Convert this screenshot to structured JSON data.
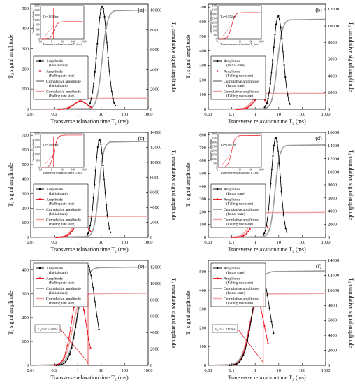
{
  "figure": {
    "common": {
      "xlabel": "Transverse relaxation time T₂ (ms)",
      "ylabel_left": "T₂ signal amplitude",
      "ylabel_right": "T₂ cumulative signal amplitude",
      "x_ticks": [
        "0.01",
        "0.1",
        "1",
        "10",
        "100",
        "1000"
      ],
      "legend": [
        {
          "label": "Amplitude",
          "sub": "(Initial state)",
          "color": "#000000",
          "style": "dots"
        },
        {
          "label": "Amplitude",
          "sub": "(Falling rate state)",
          "color": "#e8101a",
          "style": "dots"
        },
        {
          "label": "Cumulative amplitude",
          "sub": "(Initial state)",
          "color": "#8a8a8a",
          "style": "line"
        },
        {
          "label": "Cumulative amplitude",
          "sub": "(Falling rate state)",
          "color": "#f2a3a3",
          "style": "line"
        }
      ],
      "inset": {
        "xlabel": "Transverse relaxation time T₂ (ms)",
        "ylabel": "Cumulative amplitude",
        "x_ticks": [
          "0.1",
          "1",
          "10",
          "100",
          "1000"
        ]
      },
      "colors": {
        "initial": "#000000",
        "falling": "#e8101a",
        "cum_initial": "#9a9a9a",
        "cum_falling": "#f2a3a3"
      }
    },
    "panels": [
      {
        "label": "(a)",
        "yleft_ticks": [
          "0",
          "100",
          "200",
          "300",
          "400",
          "500"
        ],
        "yright_ticks": [
          "0",
          "2000",
          "4000",
          "6000",
          "8000",
          "10000"
        ],
        "inset": {
          "annotation": "T₂c=1.036ms",
          "y_ticks": [
            "0",
            "300",
            "600",
            "900",
            "1200",
            "1500",
            "1800",
            "2100"
          ]
        }
      },
      {
        "label": "(b)",
        "yleft_ticks": [
          "0",
          "100",
          "200",
          "300",
          "400",
          "500",
          "600",
          "700"
        ],
        "yright_ticks": [
          "0",
          "2000",
          "4000",
          "6000",
          "8000",
          "10000",
          "12000"
        ],
        "inset": {
          "annotation": "T₂c=1.852ms",
          "y_ticks": [
            "0",
            "300",
            "600",
            "900",
            "1200",
            "1500",
            "1800",
            "2100",
            "2400"
          ]
        }
      },
      {
        "label": "(c)",
        "yleft_ticks": [
          "0",
          "100",
          "200",
          "300",
          "400",
          "500",
          "600",
          "700"
        ],
        "yright_ticks": [
          "0",
          "2000",
          "4000",
          "6000",
          "8000",
          "10000",
          "12000",
          "14000"
        ],
        "inset": {
          "annotation": "T₂c=1.889ms",
          "y_ticks": [
            "0",
            "500",
            "1000",
            "1500",
            "2000",
            "2500"
          ]
        }
      },
      {
        "label": "(d)",
        "yleft_ticks": [
          "0",
          "100",
          "200",
          "300",
          "400",
          "500",
          "600",
          "700",
          "800"
        ],
        "yright_ticks": [
          "0",
          "2000",
          "4000",
          "6000",
          "8000",
          "10000",
          "12000",
          "14000",
          "16000"
        ],
        "inset": {
          "annotation": "T₂c=1.667ms",
          "y_ticks": [
            "0",
            "500",
            "1000",
            "1500",
            "2000",
            "2500",
            "3000",
            "3500",
            "4000"
          ]
        }
      },
      {
        "label": "(e)",
        "yleft_ticks": [
          "0",
          "100",
          "200",
          "300",
          "400"
        ],
        "yright_ticks": [
          "0",
          "2000",
          "4000",
          "6000",
          "8000",
          "10000",
          "12000"
        ],
        "annotation": "T₂c=2.759ms"
      },
      {
        "label": "(f)",
        "yleft_ticks": [
          "0",
          "100",
          "200",
          "300",
          "400",
          "500"
        ],
        "yright_ticks": [
          "0",
          "2000",
          "4000",
          "6000",
          "8000",
          "10000",
          "12000",
          "14000"
        ],
        "annotation": "T₂c=2.211ms"
      }
    ]
  },
  "chart_data": [
    {
      "type": "line",
      "title": "(a)",
      "xscale": "log",
      "xlim": [
        0.01,
        1000
      ],
      "ylim_left": [
        0,
        520
      ],
      "ylim_right": [
        0,
        10600
      ],
      "series": [
        {
          "name": "Amplitude (Initial state)",
          "axis": "left",
          "peak_T2": 11,
          "peak_amp": 510,
          "x_range": [
            3,
            40
          ]
        },
        {
          "name": "Amplitude (Falling rate state)",
          "axis": "left",
          "peak_T2": 1.3,
          "peak_amp": 40,
          "x_range": [
            0.15,
            4
          ]
        },
        {
          "name": "Cumulative amplitude (Initial state)",
          "axis": "right",
          "final": 10000
        },
        {
          "name": "Cumulative amplitude (Falling rate state)",
          "axis": "right",
          "final": 1100
        }
      ]
    },
    {
      "type": "line",
      "title": "(b)",
      "xscale": "log",
      "xlim": [
        0.01,
        1000
      ],
      "ylim_left": [
        0,
        720
      ],
      "ylim_right": [
        0,
        12600
      ],
      "series": [
        {
          "name": "Amplitude (Initial state)",
          "axis": "left",
          "peak_T2": 9.5,
          "peak_amp": 640,
          "x_range": [
            2.5,
            30
          ]
        },
        {
          "name": "Amplitude (Falling rate state)",
          "axis": "left",
          "peak_T2": 1.6,
          "peak_amp": 85,
          "x_range": [
            0.15,
            3.5
          ]
        },
        {
          "name": "Cumulative amplitude (Initial state)",
          "axis": "right",
          "final": 10800
        },
        {
          "name": "Cumulative amplitude (Falling rate state)",
          "axis": "right",
          "final": 1900
        }
      ]
    },
    {
      "type": "line",
      "title": "(c)",
      "xscale": "log",
      "xlim": [
        0.01,
        1000
      ],
      "ylim_left": [
        0,
        720
      ],
      "ylim_right": [
        0,
        14000
      ],
      "series": [
        {
          "name": "Amplitude (Initial state)",
          "axis": "left",
          "peak_T2": 8.5,
          "peak_amp": 670,
          "x_range": [
            2.5,
            25
          ]
        },
        {
          "name": "Amplitude (Falling rate state)",
          "axis": "left",
          "peak_T2": 1.4,
          "peak_amp": 110,
          "x_range": [
            0.12,
            3.5
          ]
        },
        {
          "name": "Cumulative amplitude (Initial state)",
          "axis": "right",
          "final": 12800
        },
        {
          "name": "Cumulative amplitude (Falling rate state)",
          "axis": "right",
          "final": 2800
        }
      ]
    },
    {
      "type": "line",
      "title": "(d)",
      "xscale": "log",
      "xlim": [
        0.01,
        1000
      ],
      "ylim_left": [
        0,
        820
      ],
      "ylim_right": [
        0,
        16000
      ],
      "series": [
        {
          "name": "Amplitude (Initial state)",
          "axis": "left",
          "peak_T2": 7.5,
          "peak_amp": 780,
          "x_range": [
            2.2,
            22
          ]
        },
        {
          "name": "Amplitude (Falling rate state)",
          "axis": "left",
          "peak_T2": 1.5,
          "peak_amp": 160,
          "x_range": [
            0.1,
            3.5
          ]
        },
        {
          "name": "Cumulative amplitude (Initial state)",
          "axis": "right",
          "final": 14100
        },
        {
          "name": "Cumulative amplitude (Falling rate state)",
          "axis": "right",
          "final": 3800
        }
      ]
    },
    {
      "type": "line",
      "title": "(e)",
      "xscale": "log",
      "xlim": [
        0.01,
        1000
      ],
      "ylim_left": [
        0,
        440
      ],
      "ylim_right": [
        0,
        12800
      ],
      "series": [
        {
          "name": "Amplitude (Initial state)",
          "axis": "left",
          "peak_T2": 2.5,
          "peak_amp": 425,
          "x_range": [
            0.12,
            8
          ]
        },
        {
          "name": "Amplitude (Falling rate state)",
          "axis": "left",
          "peak_T2": 1.1,
          "peak_amp": 305,
          "x_range": [
            0.1,
            3.5
          ]
        },
        {
          "name": "Cumulative amplitude (Initial state)",
          "axis": "right",
          "final": 12000
        },
        {
          "name": "Cumulative amplitude (Falling rate state)",
          "axis": "right",
          "final": 8800
        }
      ]
    },
    {
      "type": "line",
      "title": "(f)",
      "xscale": "log",
      "xlim": [
        0.01,
        1000
      ],
      "ylim_left": [
        0,
        560
      ],
      "ylim_right": [
        0,
        14000
      ],
      "series": [
        {
          "name": "Amplitude (Initial state)",
          "axis": "left",
          "peak_T2": 1.8,
          "peak_amp": 490,
          "x_range": [
            0.08,
            6
          ]
        },
        {
          "name": "Amplitude (Falling rate state)",
          "axis": "left",
          "peak_T2": 1.2,
          "peak_amp": 345,
          "x_range": [
            0.08,
            3.5
          ]
        },
        {
          "name": "Cumulative amplitude (Initial state)",
          "axis": "right",
          "final": 12600
        },
        {
          "name": "Cumulative amplitude (Falling rate state)",
          "axis": "right",
          "final": 9600
        }
      ]
    }
  ]
}
